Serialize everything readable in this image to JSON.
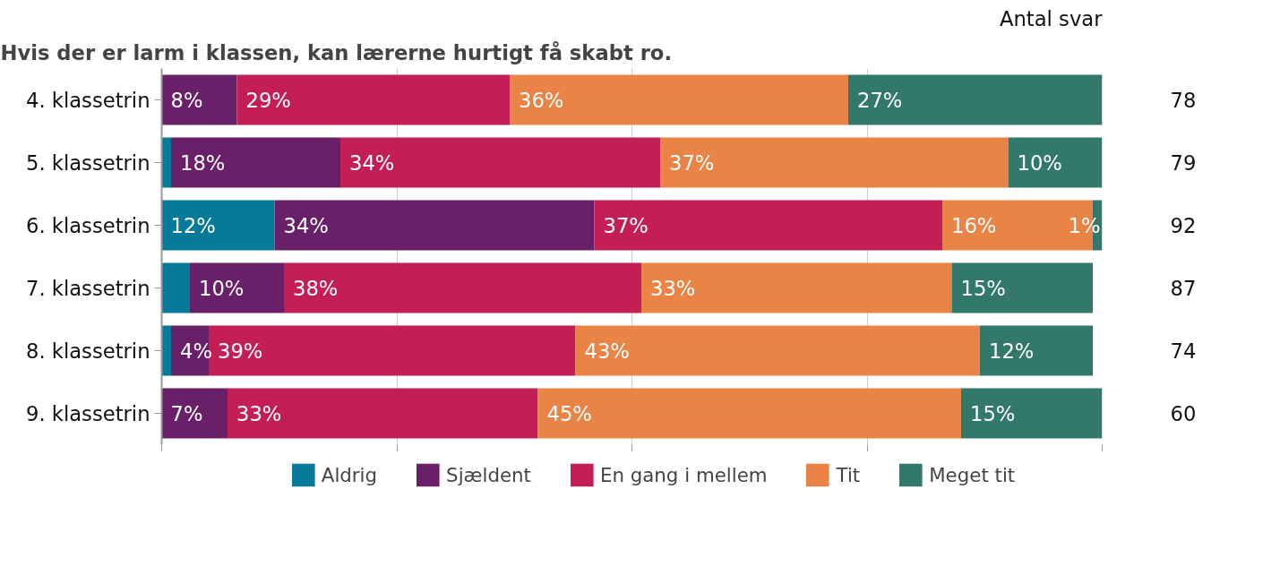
{
  "chart_data": {
    "type": "bar",
    "orientation": "horizontal",
    "stacked": true,
    "title": "Hvis der er larm i klassen, kan lærerne hurtigt få skabt ro.",
    "categories": [
      "4. klassetrin",
      "5. klassetrin",
      "6. klassetrin",
      "7. klassetrin",
      "8. klassetrin",
      "9. klassetrin"
    ],
    "series": [
      {
        "name": "Aldrig",
        "color": "#077a99",
        "values": [
          0,
          1,
          12,
          3,
          1,
          0
        ],
        "value_labels": [
          null,
          null,
          "12%",
          null,
          null,
          null
        ]
      },
      {
        "name": "Sjældent",
        "color": "#6a2068",
        "values": [
          8,
          18,
          34,
          10,
          4,
          7
        ],
        "value_labels": [
          "8%",
          "18%",
          "34%",
          "10%",
          "4%",
          "7%"
        ]
      },
      {
        "name": "En gang i mellem",
        "color": "#c41f55",
        "values": [
          29,
          34,
          37,
          38,
          39,
          33
        ],
        "value_labels": [
          "29%",
          "34%",
          "37%",
          "38%",
          "39%",
          "33%"
        ]
      },
      {
        "name": "Tit",
        "color": "#e98446",
        "values": [
          36,
          37,
          16,
          33,
          43,
          45
        ],
        "value_labels": [
          "36%",
          "37%",
          "16%",
          "33%",
          "43%",
          "45%"
        ]
      },
      {
        "name": "Meget tit",
        "color": "#32796c",
        "values": [
          27,
          10,
          1,
          15,
          12,
          15
        ],
        "value_labels": [
          "27%",
          "10%",
          "1%",
          "15%",
          "12%",
          "15%"
        ]
      }
    ],
    "xlim": [
      0,
      100
    ],
    "xticks": [
      {
        "value": 0,
        "label": null
      },
      {
        "value": 25,
        "label": null
      },
      {
        "value": 50,
        "label": null
      },
      {
        "value": 75,
        "label": null
      },
      {
        "value": 100,
        "label": null
      }
    ],
    "tick_labels": "y",
    "grid": "x",
    "legend": "bottom",
    "annotations": [
      "Antal svar",
      "78",
      "79",
      "92",
      "87",
      "74",
      "60"
    ]
  }
}
